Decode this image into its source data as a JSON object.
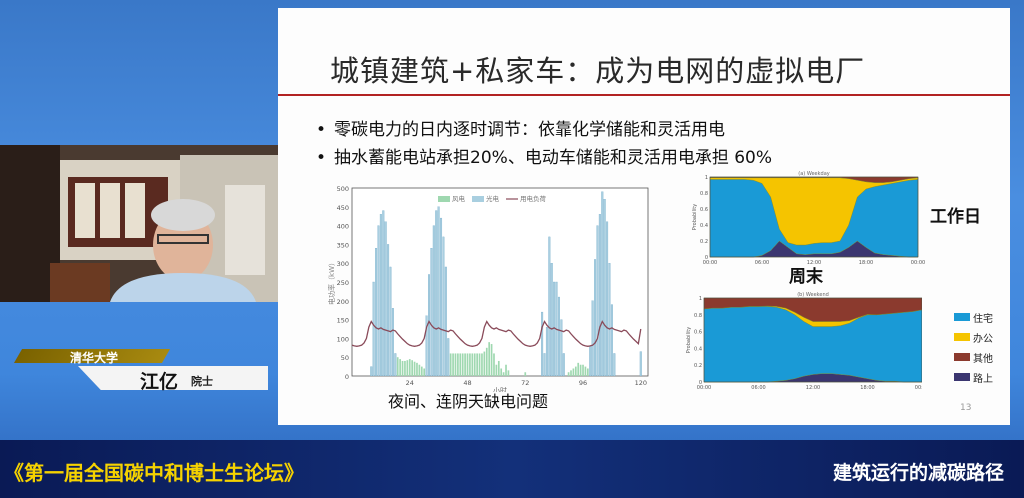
{
  "slide": {
    "title": "城镇建筑+私家车：成为电网的虚拟电厂",
    "bullets": [
      "零碳电力的日内逐时调节：依靠化学储能和灵活用电",
      "抽水蓄能电站承担20%、电动车储能和灵活用电承担 60%"
    ],
    "left_caption": "夜间、连阴天缺电问题",
    "weekday_label": "工作日",
    "weekend_label": "周末",
    "page_number": "13",
    "accent_color": "#b22222"
  },
  "speaker": {
    "organization": "清华大学",
    "name": "江亿",
    "title": "院士"
  },
  "bottom_bar": {
    "forum_name": "《第一届全国碳中和博士生论坛》",
    "talk_title": "建筑运行的减碳路径"
  },
  "chart_data": [
    {
      "type": "bar",
      "xlabel": "小时",
      "ylabel": "电功率（kW）",
      "xlim": [
        0,
        123
      ],
      "ylim": [
        0,
        500
      ],
      "xticks": [
        24,
        48,
        72,
        96,
        120
      ],
      "yticks": [
        0,
        50,
        100,
        150,
        200,
        250,
        300,
        350,
        400,
        450,
        500
      ],
      "legend": [
        "风电",
        "光电",
        "用电负荷"
      ],
      "legend_placement": "top-center",
      "colors": {
        "风电": "#9fd8b0",
        "光电": "#a9cfe0",
        "用电负荷": "#8a4b5a"
      },
      "series": [
        {
          "name": "风电",
          "type": "bar",
          "values": [
            0,
            0,
            0,
            0,
            0,
            0,
            0,
            0,
            0,
            0,
            0,
            0,
            0,
            0,
            0,
            0,
            0,
            0,
            0,
            50,
            45,
            40,
            40,
            42,
            45,
            42,
            38,
            35,
            30,
            25,
            20,
            0,
            0,
            0,
            0,
            0,
            0,
            0,
            0,
            0,
            0,
            60,
            60,
            60,
            60,
            60,
            60,
            60,
            60,
            60,
            60,
            60,
            60,
            60,
            60,
            65,
            75,
            90,
            85,
            60,
            30,
            40,
            20,
            10,
            30,
            15,
            0,
            0,
            0,
            0,
            0,
            0,
            10,
            0,
            0,
            0,
            0,
            0,
            0,
            0,
            0,
            0,
            0,
            0,
            0,
            0,
            0,
            0,
            0,
            0,
            10,
            15,
            20,
            25,
            35,
            30,
            30,
            25,
            20,
            0,
            0,
            0,
            0,
            0,
            0,
            0,
            0,
            0,
            0,
            0,
            0,
            0,
            0,
            0,
            0,
            0,
            0,
            0,
            0,
            0,
            0
          ]
        },
        {
          "name": "光电",
          "type": "bar",
          "values": [
            0,
            0,
            0,
            0,
            0,
            0,
            0,
            0,
            25,
            250,
            340,
            400,
            430,
            440,
            410,
            350,
            290,
            180,
            60,
            0,
            0,
            0,
            0,
            0,
            0,
            0,
            0,
            0,
            0,
            0,
            0,
            160,
            270,
            340,
            400,
            440,
            450,
            420,
            370,
            290,
            100,
            0,
            0,
            0,
            0,
            0,
            0,
            0,
            0,
            0,
            0,
            0,
            0,
            0,
            0,
            0,
            0,
            0,
            0,
            0,
            0,
            0,
            0,
            0,
            0,
            0,
            0,
            0,
            0,
            0,
            0,
            0,
            0,
            0,
            0,
            0,
            0,
            0,
            0,
            170,
            60,
            130,
            370,
            300,
            250,
            250,
            210,
            150,
            60,
            0,
            0,
            0,
            0,
            0,
            0,
            0,
            0,
            0,
            0,
            80,
            200,
            310,
            400,
            430,
            490,
            470,
            410,
            300,
            190,
            60,
            0,
            0,
            0,
            0,
            0,
            0,
            0,
            0,
            0,
            0,
            65
          ]
        },
        {
          "name": "用电负荷",
          "type": "line",
          "values": [
            82,
            80,
            79,
            80,
            82,
            88,
            100,
            130,
            145,
            135,
            128,
            125,
            128,
            124,
            122,
            120,
            118,
            122,
            120,
            112,
            105,
            98,
            92,
            86,
            82,
            80,
            79,
            80,
            82,
            88,
            100,
            130,
            145,
            135,
            128,
            125,
            128,
            124,
            122,
            120,
            118,
            122,
            120,
            112,
            105,
            98,
            92,
            86,
            82,
            80,
            79,
            80,
            82,
            88,
            100,
            130,
            145,
            135,
            128,
            125,
            128,
            124,
            122,
            120,
            118,
            122,
            120,
            112,
            105,
            98,
            92,
            86,
            82,
            80,
            79,
            80,
            82,
            88,
            100,
            130,
            145,
            135,
            128,
            125,
            128,
            124,
            122,
            120,
            118,
            122,
            120,
            112,
            105,
            98,
            92,
            86,
            82,
            80,
            79,
            80,
            82,
            88,
            100,
            130,
            145,
            135,
            128,
            125,
            128,
            124,
            122,
            120,
            118,
            122,
            120,
            112,
            105,
            98,
            92,
            86,
            125
          ]
        }
      ]
    },
    {
      "type": "area",
      "title": "(a) Weekday",
      "ylabel": "Probability",
      "x": [
        0,
        1,
        2,
        3,
        4,
        5,
        6,
        7,
        8,
        9,
        10,
        11,
        12,
        13,
        14,
        15,
        16,
        17,
        18,
        19,
        20,
        21,
        22,
        23,
        24
      ],
      "xticks": [
        "00:00",
        "06:00",
        "12:00",
        "18:00",
        "00:00"
      ],
      "yticks": [
        0,
        0.2,
        0.4,
        0.6,
        0.8,
        1
      ],
      "ylim": [
        0,
        1
      ],
      "stacked": true,
      "series": [
        {
          "name": "路上",
          "color": "#3b3670",
          "values": [
            0,
            0,
            0,
            0,
            0,
            0,
            0.02,
            0.08,
            0.2,
            0.12,
            0.04,
            0.03,
            0.04,
            0.04,
            0.04,
            0.06,
            0.12,
            0.2,
            0.12,
            0.05,
            0.03,
            0.02,
            0.01,
            0,
            0
          ]
        },
        {
          "name": "住宅",
          "color": "#1a9ad6",
          "values": [
            0.97,
            0.97,
            0.97,
            0.97,
            0.97,
            0.96,
            0.9,
            0.67,
            0.15,
            0.06,
            0.11,
            0.12,
            0.13,
            0.14,
            0.14,
            0.14,
            0.28,
            0.55,
            0.73,
            0.83,
            0.87,
            0.9,
            0.93,
            0.96,
            0.97
          ]
        },
        {
          "name": "办公",
          "color": "#f5c400",
          "values": [
            0.02,
            0.02,
            0.02,
            0.02,
            0.02,
            0.03,
            0.07,
            0.24,
            0.64,
            0.81,
            0.84,
            0.84,
            0.82,
            0.81,
            0.81,
            0.79,
            0.58,
            0.21,
            0.09,
            0.05,
            0.03,
            0.02,
            0.02,
            0.02,
            0.02
          ]
        },
        {
          "name": "其他",
          "color": "#8b3a2e",
          "values": [
            0.01,
            0.01,
            0.01,
            0.01,
            0.01,
            0.01,
            0.01,
            0.01,
            0.01,
            0.01,
            0.01,
            0.01,
            0.01,
            0.01,
            0.01,
            0.01,
            0.02,
            0.04,
            0.06,
            0.07,
            0.07,
            0.06,
            0.04,
            0.02,
            0.01
          ]
        }
      ]
    },
    {
      "type": "area",
      "title": "(b) Weekend",
      "ylabel": "Probability",
      "x": [
        0,
        1,
        2,
        3,
        4,
        5,
        6,
        7,
        8,
        9,
        10,
        11,
        12,
        13,
        14,
        15,
        16,
        17,
        18,
        19,
        20,
        21,
        22,
        23,
        24
      ],
      "xticks": [
        "00:00",
        "06:00",
        "12:00",
        "18:00",
        "00:00"
      ],
      "yticks": [
        0,
        0.2,
        0.4,
        0.6,
        0.8,
        1
      ],
      "ylim": [
        0,
        1
      ],
      "stacked": true,
      "legend": [
        "住宅",
        "办公",
        "其他",
        "路上"
      ],
      "legend_placement": "right",
      "series": [
        {
          "name": "路上",
          "color": "#3b3670",
          "values": [
            0,
            0,
            0,
            0,
            0,
            0,
            0,
            0,
            0.01,
            0.02,
            0.04,
            0.07,
            0.09,
            0.1,
            0.1,
            0.09,
            0.08,
            0.06,
            0.04,
            0.02,
            0.01,
            0.01,
            0,
            0,
            0
          ]
        },
        {
          "name": "住宅",
          "color": "#1a9ad6",
          "values": [
            0.87,
            0.88,
            0.88,
            0.89,
            0.89,
            0.9,
            0.9,
            0.9,
            0.88,
            0.84,
            0.76,
            0.65,
            0.57,
            0.56,
            0.56,
            0.58,
            0.62,
            0.7,
            0.76,
            0.78,
            0.8,
            0.81,
            0.83,
            0.84,
            0.86
          ]
        },
        {
          "name": "办公",
          "color": "#f5c400",
          "values": [
            0,
            0,
            0,
            0,
            0,
            0,
            0,
            0.005,
            0.01,
            0.02,
            0.03,
            0.05,
            0.06,
            0.06,
            0.06,
            0.05,
            0.03,
            0.01,
            0.005,
            0,
            0,
            0,
            0,
            0,
            0
          ]
        },
        {
          "name": "其他",
          "color": "#8b3a2e",
          "values": [
            0.13,
            0.12,
            0.12,
            0.11,
            0.11,
            0.1,
            0.1,
            0.095,
            0.1,
            0.12,
            0.17,
            0.23,
            0.28,
            0.28,
            0.28,
            0.28,
            0.27,
            0.23,
            0.195,
            0.2,
            0.19,
            0.18,
            0.17,
            0.16,
            0.14
          ]
        }
      ]
    }
  ]
}
